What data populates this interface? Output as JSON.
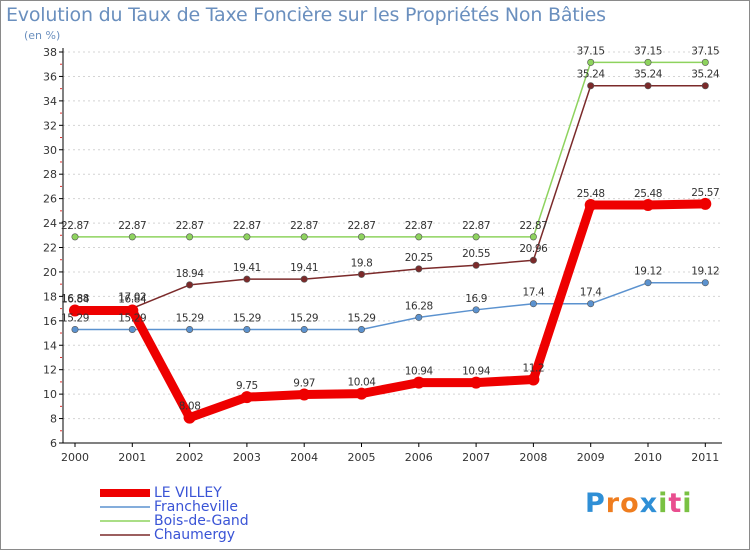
{
  "chart_data": {
    "type": "line",
    "title": "Evolution du Taux de Taxe Foncière sur les Propriétés Non Bâties",
    "ylabel": "(en %)",
    "xlabel": "",
    "categories": [
      "2000",
      "2001",
      "2002",
      "2003",
      "2004",
      "2005",
      "2006",
      "2007",
      "2008",
      "2009",
      "2010",
      "2011"
    ],
    "ylim": [
      6,
      38
    ],
    "yticks": [
      6,
      8,
      10,
      12,
      14,
      16,
      18,
      20,
      22,
      24,
      26,
      28,
      30,
      32,
      34,
      36,
      38
    ],
    "series": [
      {
        "name": "LE VILLEY",
        "color": "#ee0000",
        "values": [
          16.84,
          16.84,
          8.08,
          9.75,
          9.97,
          10.04,
          10.94,
          10.94,
          11.2,
          25.48,
          25.48,
          25.57
        ],
        "labels": [
          "16.84",
          "16.84",
          "8.08",
          "9.75",
          "9.97",
          "10.04",
          "10.94",
          "10.94",
          "11.2",
          "25.48",
          "25.48",
          "25.57"
        ]
      },
      {
        "name": "Francheville",
        "color": "#5b92cf",
        "values": [
          15.29,
          15.29,
          15.29,
          15.29,
          15.29,
          15.29,
          16.28,
          16.9,
          17.4,
          17.4,
          19.12,
          19.12
        ],
        "labels": [
          "15.29",
          "15.29",
          "15.29",
          "15.29",
          "15.29",
          "15.29",
          "16.28",
          "16.9",
          "17.4",
          "17.4",
          "19.12",
          "19.12"
        ]
      },
      {
        "name": "Bois-de-Gand",
        "color": "#8ed35e",
        "values": [
          22.87,
          22.87,
          22.87,
          22.87,
          22.87,
          22.87,
          22.87,
          22.87,
          22.87,
          37.15,
          37.15,
          37.15
        ],
        "labels": [
          "22.87",
          "22.87",
          "22.87",
          "22.87",
          "22.87",
          "22.87",
          "22.87",
          "22.87",
          "22.87",
          "37.15",
          "37.15",
          "37.15"
        ]
      },
      {
        "name": "Chaumergy",
        "color": "#7b2a2a",
        "values": [
          16.88,
          17.02,
          18.94,
          19.41,
          19.41,
          19.8,
          20.25,
          20.55,
          20.96,
          35.24,
          35.24,
          35.24
        ],
        "labels": [
          "16.88",
          "17.02",
          "18.94",
          "19.41",
          "19.41",
          "19.8",
          "20.25",
          "20.55",
          "20.96",
          "35.24",
          "35.24",
          "35.24"
        ]
      }
    ],
    "legend": {
      "position": "bottom-left",
      "labels": [
        "LE VILLEY",
        "Francheville",
        "Bois-de-Gand",
        "Chaumergy"
      ]
    }
  },
  "logo": {
    "letters": [
      "P",
      "r",
      "o",
      "x",
      "i",
      "t",
      "i"
    ],
    "colors": [
      "#2f8fd6",
      "#ef7d1f",
      "#ef7d1f",
      "#2f8fd6",
      "#7ac143",
      "#e94e8f",
      "#7ac143"
    ]
  }
}
